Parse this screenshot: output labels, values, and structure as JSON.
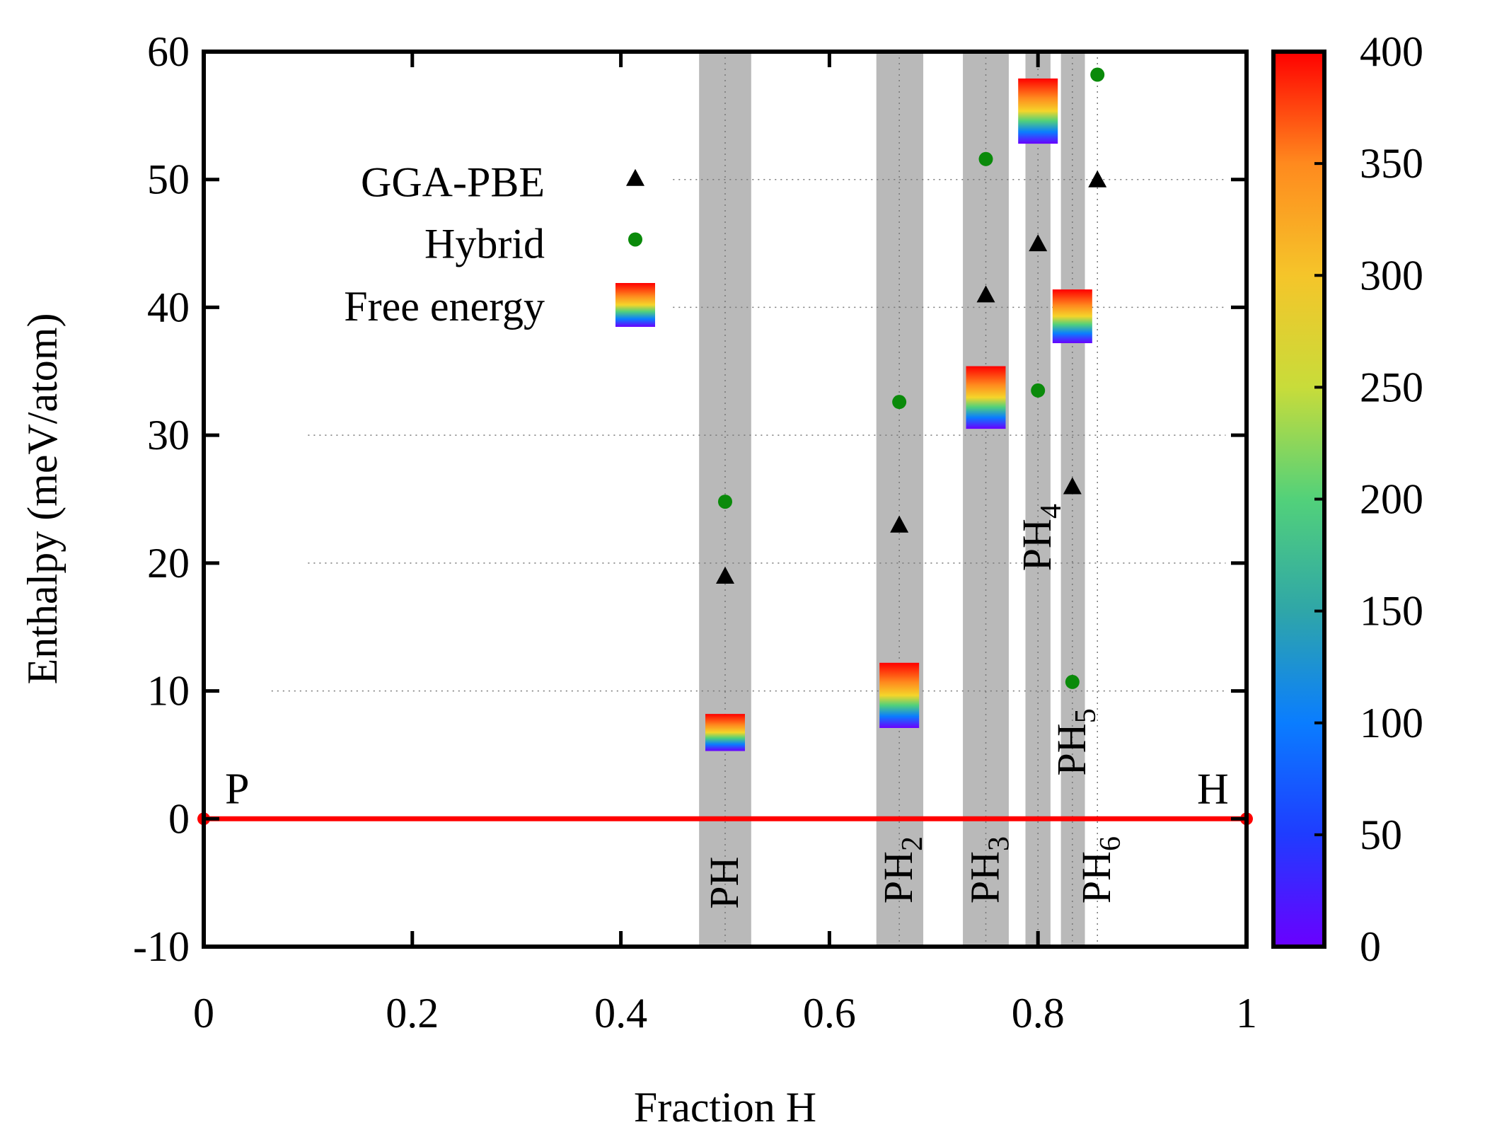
{
  "chart_data": {
    "type": "scatter",
    "xlabel": "Fraction  H",
    "ylabel": "Enthalpy (meV/atom)",
    "xlim": [
      0,
      1
    ],
    "ylim": [
      -10,
      60
    ],
    "xticks": [
      "0",
      "0.2",
      "0.4",
      "0.6",
      "0.8",
      "1"
    ],
    "xtick_values": [
      0,
      0.2,
      0.4,
      0.6,
      0.8,
      1
    ],
    "yticks": [
      "-10",
      "0",
      "10",
      "20",
      "30",
      "40",
      "50",
      "60"
    ],
    "ytick_values": [
      -10,
      0,
      10,
      20,
      30,
      40,
      50,
      60
    ],
    "colorbar": {
      "ticks": [
        "0",
        "50",
        "100",
        "150",
        "200",
        "250",
        "300",
        "350",
        "400"
      ],
      "tick_values": [
        0,
        50,
        100,
        150,
        200,
        250,
        300,
        350,
        400
      ],
      "range": [
        0,
        400
      ],
      "colors": [
        "#6a00ff",
        "#1f3cff",
        "#0a7dff",
        "#2fa6a8",
        "#52d17a",
        "#c8dc3a",
        "#f5c52a",
        "#ff8a1e",
        "#ff0000"
      ]
    },
    "legend": [
      {
        "label": "GGA-PBE",
        "marker": "triangle",
        "color": "#000000"
      },
      {
        "label": "Hybrid",
        "marker": "circle",
        "color": "#0a8a0a"
      },
      {
        "label": "Free energy",
        "marker": "gradient-box",
        "color": "#ff0000"
      }
    ],
    "hull_line": {
      "x": [
        0,
        1
      ],
      "y": [
        0,
        0
      ],
      "color": "#ff0000"
    },
    "endpoints": [
      {
        "label": "P",
        "x": 0,
        "y": 0
      },
      {
        "label": "H",
        "x": 1,
        "y": 0
      }
    ],
    "phase_bands": [
      {
        "name": "PH",
        "base": "PH",
        "sub": "",
        "x": 0.5,
        "x_min": 0.475,
        "x_max": 0.525,
        "label_y": -5
      },
      {
        "name": "PH2",
        "base": "PH",
        "sub": "2",
        "x": 0.667,
        "x_min": 0.645,
        "x_max": 0.69,
        "label_y": -4
      },
      {
        "name": "PH3",
        "base": "PH",
        "sub": "3",
        "x": 0.75,
        "x_min": 0.728,
        "x_max": 0.772,
        "label_y": -4
      },
      {
        "name": "PH4",
        "base": "PH",
        "sub": "4",
        "x": 0.8,
        "x_min": 0.788,
        "x_max": 0.812,
        "label_y": 22
      },
      {
        "name": "PH5",
        "base": "PH",
        "sub": "5",
        "x": 0.833,
        "x_min": 0.822,
        "x_max": 0.845,
        "label_y": 6
      },
      {
        "name": "PH6",
        "base": "PH",
        "sub": "6",
        "x": 0.857,
        "x_min": 0.857,
        "x_max": 0.857,
        "label_y": -4
      }
    ],
    "series": [
      {
        "name": "GGA-PBE",
        "marker": "triangle",
        "points": [
          [
            0.5,
            19
          ],
          [
            0.667,
            23
          ],
          [
            0.75,
            41
          ],
          [
            0.8,
            45
          ],
          [
            0.833,
            26
          ],
          [
            0.857,
            50
          ]
        ]
      },
      {
        "name": "Hybrid",
        "marker": "circle",
        "points": [
          [
            0.5,
            24.8
          ],
          [
            0.667,
            32.6
          ],
          [
            0.75,
            51.6
          ],
          [
            0.8,
            33.5
          ],
          [
            0.833,
            10.7
          ],
          [
            0.857,
            58.2
          ]
        ]
      },
      {
        "name": "Free energy",
        "marker": "gradient-box",
        "boxes": [
          [
            0.5,
            5.3,
            8.2
          ],
          [
            0.667,
            7.1,
            12.2
          ],
          [
            0.75,
            30.5,
            35.4
          ],
          [
            0.8,
            52.8,
            57.9
          ],
          [
            0.833,
            37.2,
            41.4
          ]
        ]
      }
    ],
    "guide_lines": [
      {
        "y": 50,
        "x_from": 0.45,
        "x_to": 0.98
      },
      {
        "y": 40,
        "x_from": 0.45,
        "x_to": 0.98
      },
      {
        "y": 30,
        "x_from": 0.1,
        "x_to": 0.98
      },
      {
        "y": 20,
        "x_from": 0.1,
        "x_to": 0.98
      },
      {
        "y": 10,
        "x_from": 0.065,
        "x_to": 0.98
      }
    ]
  }
}
